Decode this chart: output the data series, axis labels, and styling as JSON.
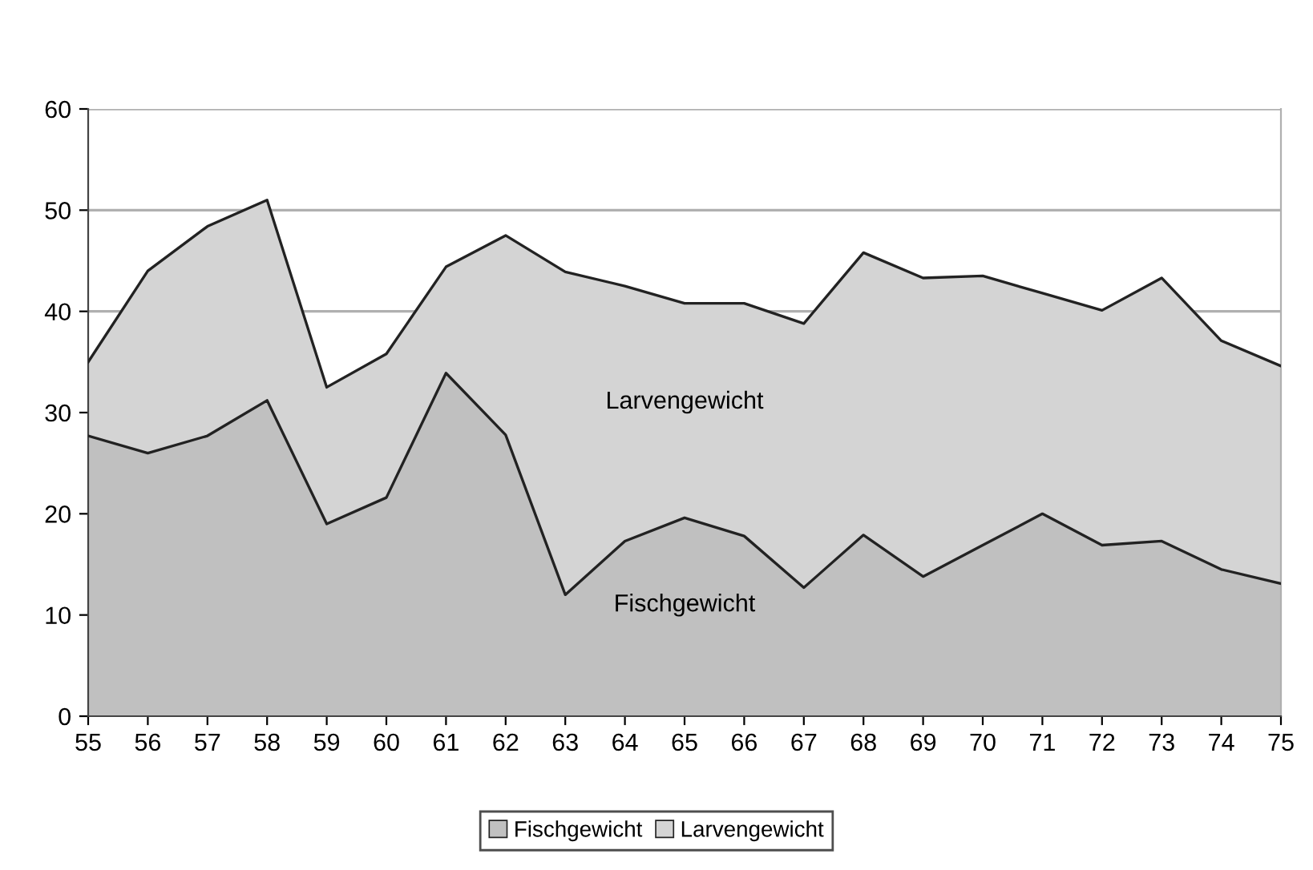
{
  "chart_data": {
    "type": "area",
    "stacked": true,
    "x": [
      55,
      56,
      57,
      58,
      59,
      60,
      61,
      62,
      63,
      64,
      65,
      66,
      67,
      68,
      69,
      70,
      71,
      72,
      73,
      74,
      75
    ],
    "series": [
      {
        "name": "Fischgewicht",
        "color": "#c0c0c0",
        "values": [
          27.7,
          26,
          27.7,
          31.2,
          19,
          21.6,
          33.9,
          27.8,
          12,
          17.3,
          19.6,
          17.8,
          12.7,
          17.9,
          13.8,
          16.9,
          20,
          16.9,
          17.3,
          14.5,
          13.1
        ]
      },
      {
        "name": "Larvengewicht",
        "color": "#d4d4d4",
        "values": [
          7.3,
          18,
          20.7,
          19.8,
          13.5,
          14.2,
          10.5,
          19.7,
          31.9,
          25.2,
          21.2,
          23,
          26.1,
          27.9,
          29.5,
          26.6,
          21.8,
          23.2,
          26,
          22.6,
          21.5
        ]
      }
    ],
    "xlim": [
      55,
      75
    ],
    "xticks": [
      55,
      56,
      57,
      58,
      59,
      60,
      61,
      62,
      63,
      64,
      65,
      66,
      67,
      68,
      69,
      70,
      71,
      72,
      73,
      74,
      75
    ],
    "ylim": [
      0,
      60
    ],
    "yticks": [
      0,
      10,
      20,
      30,
      40,
      50,
      60
    ],
    "grid": "y",
    "legend": "bottom",
    "annotations": [
      "Larvengewicht",
      "Fischgewicht"
    ]
  }
}
